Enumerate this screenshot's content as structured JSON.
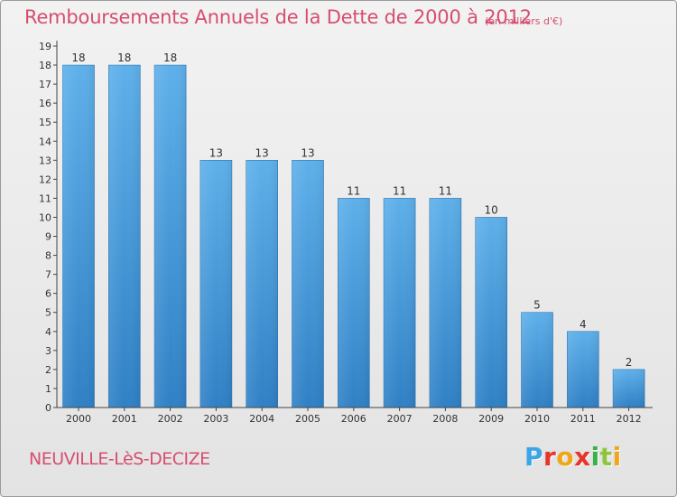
{
  "header": {
    "title": "Remboursements Annuels de la Dette de 2000 à 2012",
    "unit": "(en milliers d'€)"
  },
  "footer": {
    "city": "NEUVILLE-LèS-DECIZE",
    "brand": "Proxiti"
  },
  "colors": {
    "title": "#d64e6f",
    "bar_light": "#5eb0ea",
    "bar_dark": "#2f80c5",
    "axis": "#444444"
  },
  "chart_data": {
    "type": "bar",
    "title": "Remboursements Annuels de la Dette de 2000 à 2012",
    "subtitle": "(en milliers d'€)",
    "categories": [
      "2000",
      "2001",
      "2002",
      "2003",
      "2004",
      "2005",
      "2006",
      "2007",
      "2008",
      "2009",
      "2010",
      "2011",
      "2012"
    ],
    "values": [
      18,
      18,
      18,
      13,
      13,
      13,
      11,
      11,
      11,
      10,
      5,
      4,
      2
    ],
    "ylim": [
      0,
      19
    ],
    "yticks": [
      0,
      1,
      2,
      3,
      4,
      5,
      6,
      7,
      8,
      9,
      10,
      11,
      12,
      13,
      14,
      15,
      16,
      17,
      18,
      19
    ],
    "data_labels": true,
    "grid": false,
    "legend": "none"
  }
}
